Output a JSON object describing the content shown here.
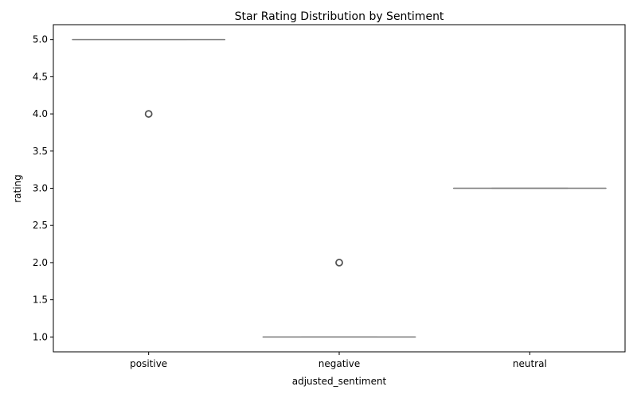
{
  "chart_data": {
    "type": "box",
    "title": "Star Rating Distribution by Sentiment",
    "xlabel": "adjusted_sentiment",
    "ylabel": "rating",
    "categories": [
      "positive",
      "negative",
      "neutral"
    ],
    "ylim": [
      0.8,
      5.2
    ],
    "yticks": [
      1.0,
      1.5,
      2.0,
      2.5,
      3.0,
      3.5,
      4.0,
      4.5,
      5.0
    ],
    "ytick_labels": [
      "1.0",
      "1.5",
      "2.0",
      "2.5",
      "3.0",
      "3.5",
      "4.0",
      "4.5",
      "5.0"
    ],
    "boxes": [
      {
        "category": "positive",
        "q1": 5.0,
        "median": 5.0,
        "q3": 5.0,
        "whisker_low": 5.0,
        "whisker_high": 5.0,
        "outliers": [
          4.0
        ]
      },
      {
        "category": "negative",
        "q1": 1.0,
        "median": 1.0,
        "q3": 1.0,
        "whisker_low": 1.0,
        "whisker_high": 1.0,
        "outliers": [
          2.0
        ]
      },
      {
        "category": "neutral",
        "q1": 3.0,
        "median": 3.0,
        "q3": 3.0,
        "whisker_low": 3.0,
        "whisker_high": 3.0,
        "outliers": []
      }
    ],
    "grid": false,
    "box_color": "#808080",
    "axis_color": "#000000"
  }
}
